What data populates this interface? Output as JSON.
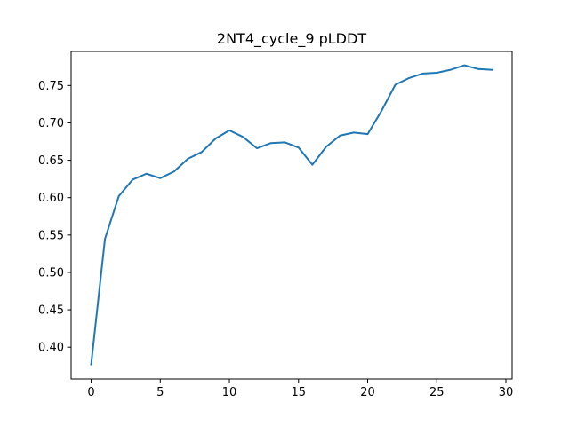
{
  "chart_data": {
    "type": "line",
    "title": "2NT4_cycle_9 pLDDT",
    "xlabel": "",
    "ylabel": "",
    "xlim": [
      -1.45,
      30.45
    ],
    "ylim": [
      0.3575,
      0.7955
    ],
    "xticks": [
      0,
      5,
      10,
      15,
      20,
      25,
      30
    ],
    "xtick_labels": [
      "0",
      "5",
      "10",
      "15",
      "20",
      "25",
      "30"
    ],
    "yticks": [
      0.4,
      0.45,
      0.5,
      0.55,
      0.6,
      0.65,
      0.7,
      0.75
    ],
    "ytick_labels": [
      "0.40",
      "0.45",
      "0.50",
      "0.55",
      "0.60",
      "0.65",
      "0.70",
      "0.75"
    ],
    "grid": false,
    "legend": false,
    "series": [
      {
        "color": "#1f77b4",
        "x": [
          0,
          1,
          2,
          3,
          4,
          5,
          6,
          7,
          8,
          9,
          10,
          11,
          12,
          13,
          14,
          15,
          16,
          17,
          18,
          19,
          20,
          21,
          22,
          23,
          24,
          25,
          26,
          27,
          28,
          29
        ],
        "values": [
          0.377,
          0.545,
          0.602,
          0.624,
          0.632,
          0.626,
          0.635,
          0.652,
          0.661,
          0.679,
          0.69,
          0.681,
          0.666,
          0.673,
          0.674,
          0.667,
          0.644,
          0.668,
          0.683,
          0.687,
          0.685,
          0.716,
          0.751,
          0.76,
          0.766,
          0.767,
          0.771,
          0.777,
          0.772,
          0.771
        ]
      }
    ]
  }
}
